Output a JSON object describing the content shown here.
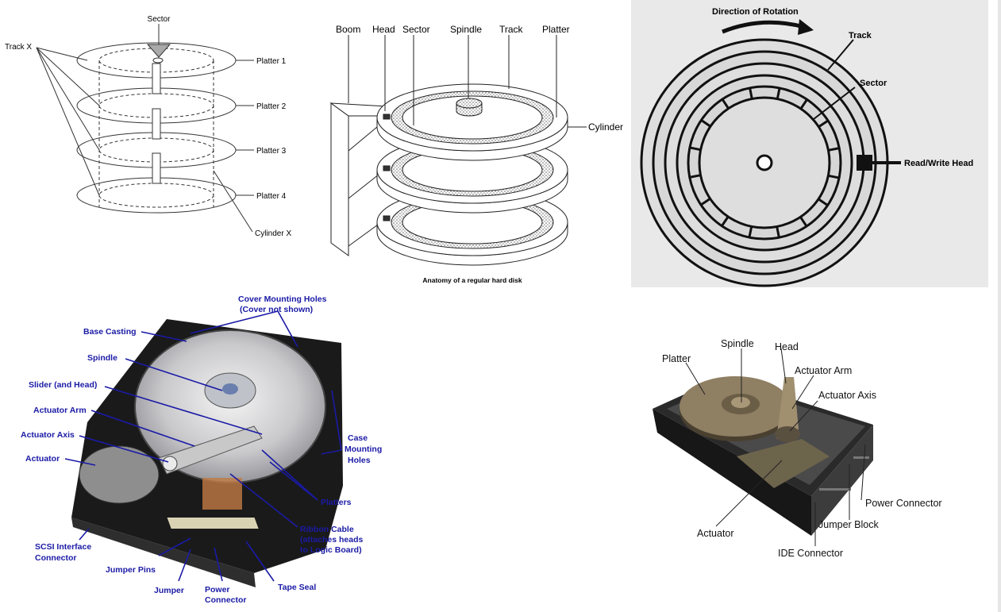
{
  "panel1": {
    "sector": "Sector",
    "track_x": "Track X",
    "platters": [
      "Platter 1",
      "Platter 2",
      "Platter 3",
      "Platter 4"
    ],
    "cylinder_x": "Cylinder X"
  },
  "panel2": {
    "labels": [
      "Boom",
      "Head",
      "Sector",
      "Spindle",
      "Track",
      "Platter"
    ],
    "cylinder": "Cylinder",
    "caption": "Anatomy of a regular hard disk"
  },
  "panel3": {
    "direction": "Direction of Rotation",
    "track": "Track",
    "sector": "Sector",
    "head": "Read/Write Head"
  },
  "panel4": {
    "left_labels": [
      "Base Casting",
      "Spindle",
      "Slider (and Head)",
      "Actuator Arm",
      "Actuator Axis",
      "Actuator"
    ],
    "cover_line1": "Cover Mounting Holes",
    "cover_line2": "(Cover not shown)",
    "case_lines": [
      "Case",
      "Mounting",
      "Holes"
    ],
    "platters": "Platters",
    "ribbon_lines": [
      "Ribbon Cable",
      "(attaches heads",
      "to Logic Board)"
    ],
    "scsi_lines": [
      "SCSI Interface",
      "Connector"
    ],
    "jumper_pins": "Jumper Pins",
    "jumper": "Jumper",
    "power_lines": [
      "Power",
      "Connector"
    ],
    "tape_seal": "Tape Seal"
  },
  "panel5": {
    "spindle": "Spindle",
    "head": "Head",
    "platter": "Platter",
    "actuator_arm": "Actuator Arm",
    "actuator_axis": "Actuator Axis",
    "power_connector": "Power Connector",
    "jumper_block": "Jumper Block",
    "ide_connector": "IDE Connector",
    "actuator": "Actuator"
  },
  "colors": {
    "blue_label": "#1a1aa6",
    "gray_bg": "#e9e9e9",
    "platter_tan": "#8f7f63"
  }
}
